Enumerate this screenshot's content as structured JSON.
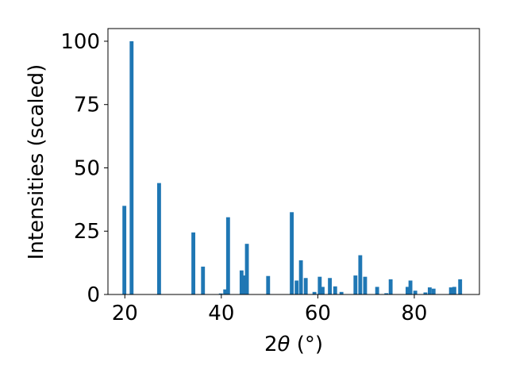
{
  "chart_data": {
    "type": "bar",
    "title": "",
    "xlabel_main": "2",
    "xlabel_theta": "θ",
    "xlabel_unit": " (°)",
    "ylabel": "Intensities (scaled)",
    "xlim": [
      16.5,
      93.5
    ],
    "ylim": [
      0,
      105
    ],
    "xticks": [
      20,
      40,
      60,
      80
    ],
    "yticks": [
      0,
      25,
      50,
      75,
      100
    ],
    "grid": false,
    "bar_width": 0.8,
    "color": "#1f77b4",
    "x": [
      19.9,
      21.4,
      27.1,
      34.2,
      36.2,
      39.9,
      40.8,
      41.4,
      44.2,
      44.7,
      45.3,
      49.7,
      54.6,
      55.6,
      56.5,
      57.5,
      59.3,
      60.4,
      61.0,
      62.5,
      63.6,
      64.9,
      67.8,
      68.8,
      69.8,
      72.3,
      74.2,
      75.1,
      78.6,
      79.2,
      80.2,
      82.3,
      83.2,
      84.0,
      87.6,
      88.3,
      89.5
    ],
    "values": [
      35,
      100,
      44,
      24.5,
      11,
      0.4,
      2,
      30.5,
      9.5,
      7.5,
      20,
      7.3,
      32.5,
      5.5,
      13.5,
      6.5,
      1,
      7,
      3,
      6.5,
      3.2,
      1,
      7.5,
      15.5,
      7,
      3,
      0.5,
      6,
      3,
      5.5,
      1.5,
      0.8,
      2.8,
      2.3,
      2.8,
      3,
      6
    ]
  }
}
